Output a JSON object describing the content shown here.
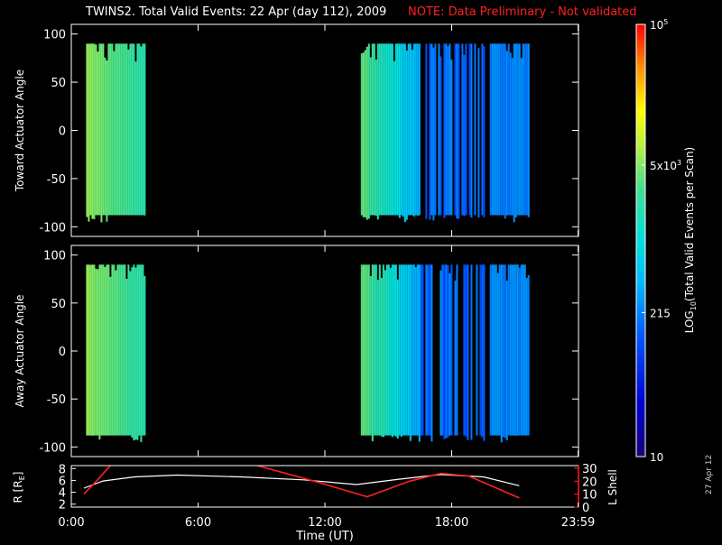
{
  "header": {
    "title": "TWINS2. Total Valid Events: 22 Apr (day 112), 2009",
    "note": "NOTE: Data Preliminary - Not validated",
    "note_color": "#ff2020"
  },
  "stamp": "27 Apr 12",
  "chart_data": [
    {
      "type": "heatmap",
      "name": "toward",
      "ylabel": "Toward Actuator Angle",
      "ylim": [
        -110,
        110
      ],
      "yticks": [
        100,
        50,
        0,
        -50,
        -100
      ],
      "xlim_hours": [
        0,
        24
      ],
      "blocks": [
        {
          "t_start": 0.7,
          "t_end": 3.5,
          "ang_min": -88,
          "ang_max": 90,
          "log_level": 3.65
        },
        {
          "t_start": 13.7,
          "t_end": 16.5,
          "ang_min": -88,
          "ang_max": 90,
          "log_level": 3.0
        },
        {
          "t_start": 16.5,
          "t_end": 19.6,
          "ang_min": -88,
          "ang_max": 90,
          "log_level": 2.0
        },
        {
          "t_start": 19.8,
          "t_end": 21.6,
          "ang_min": -88,
          "ang_max": 90,
          "log_level": 2.4
        }
      ]
    },
    {
      "type": "heatmap",
      "name": "away",
      "ylabel": "Away Actuator Angle",
      "ylim": [
        -110,
        110
      ],
      "yticks": [
        100,
        50,
        0,
        -50,
        -100
      ],
      "xlim_hours": [
        0,
        24
      ],
      "blocks": [
        {
          "t_start": 0.7,
          "t_end": 3.5,
          "ang_min": -88,
          "ang_max": 90,
          "log_level": 3.65
        },
        {
          "t_start": 13.7,
          "t_end": 16.5,
          "ang_min": -88,
          "ang_max": 90,
          "log_level": 3.0
        },
        {
          "t_start": 16.5,
          "t_end": 19.6,
          "ang_min": -88,
          "ang_max": 90,
          "log_level": 2.0
        },
        {
          "t_start": 19.8,
          "t_end": 21.6,
          "ang_min": -88,
          "ang_max": 90,
          "log_level": 2.4
        }
      ]
    },
    {
      "type": "line",
      "name": "orbit",
      "xlabel": "Time (UT)",
      "xticks": [
        "0:00",
        "6:00",
        "12:00",
        "18:00",
        "23:59"
      ],
      "xtick_hours": [
        0,
        6,
        12,
        18,
        23.98
      ],
      "ylabel_left_main": "R",
      "ylabel_left_sub": "E",
      "ylim_left": [
        1.5,
        8.5
      ],
      "yticks_left": [
        8,
        6,
        4,
        2
      ],
      "ylabel_right": "L Shell",
      "ylim_right": [
        0,
        32
      ],
      "yticks_right": [
        30,
        20,
        10,
        0
      ],
      "series": [
        {
          "axis": "left",
          "color": "#ffffff",
          "x": [
            0.6,
            1.5,
            3.0,
            5.0,
            8.0,
            11.0,
            13.5,
            15.5,
            17.5,
            19.5,
            21.2
          ],
          "y": [
            4.7,
            5.9,
            6.6,
            6.9,
            6.6,
            6.1,
            5.3,
            6.2,
            7.0,
            6.6,
            5.1
          ]
        },
        {
          "axis": "right",
          "color": "#ff2020",
          "x": [
            0.6,
            1.3,
            1.85
          ],
          "y": [
            10,
            22,
            32
          ]
        },
        {
          "axis": "right",
          "color": "#ff2020",
          "x": [
            8.8,
            11.5,
            14.0,
            16.0,
            17.5,
            18.8,
            21.2
          ],
          "y": [
            32,
            20,
            8,
            20,
            26,
            24,
            7
          ]
        }
      ]
    }
  ],
  "colorbar": {
    "label_main": "LOG",
    "label_sub": "10",
    "label_rest": "(Total Valid Events per Scan)",
    "log_range": [
      1,
      5
    ],
    "ticks": [
      {
        "log": 5,
        "base": "10",
        "exp": "5"
      },
      {
        "log": 3.699,
        "base": "5x10",
        "exp": "3"
      },
      {
        "log": 2.332,
        "base": "215",
        "exp": ""
      },
      {
        "log": 1,
        "base": "10",
        "exp": ""
      }
    ]
  }
}
